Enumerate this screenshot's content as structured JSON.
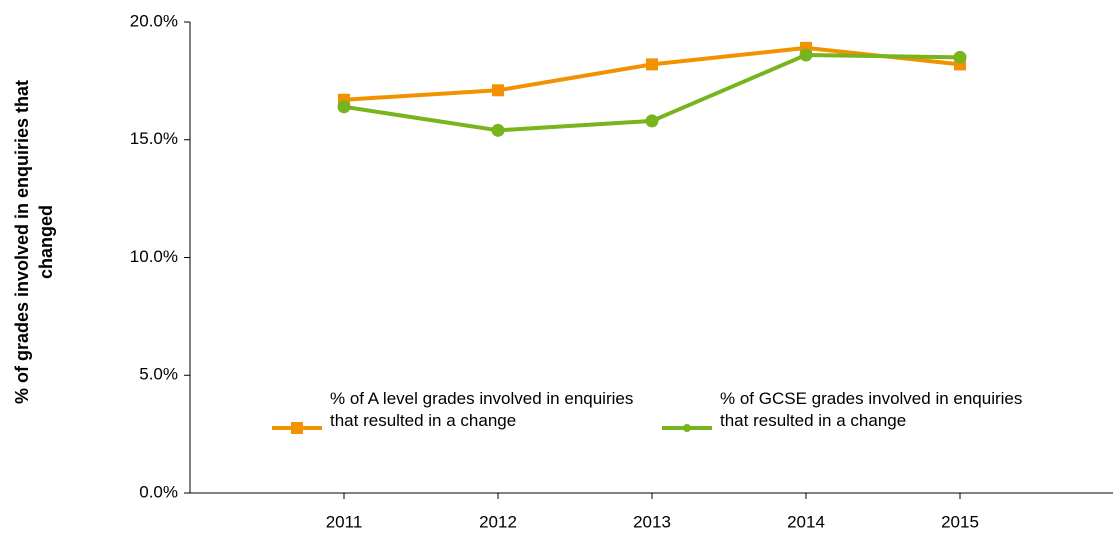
{
  "chart_data": {
    "type": "line",
    "y_label": "% of grades involved in enquiries that changed",
    "categories": [
      "2011",
      "2012",
      "2013",
      "2014",
      "2015"
    ],
    "series": [
      {
        "name": "% of A level grades involved in enquiries that resulted in a change",
        "color": "#f39200",
        "marker": "square",
        "values": [
          16.7,
          17.1,
          18.2,
          18.9,
          18.2
        ]
      },
      {
        "name": "% of GCSE grades involved in enquiries that resulted in a change",
        "color": "#77b41e",
        "marker": "circle",
        "values": [
          16.4,
          15.4,
          15.8,
          18.6,
          18.5
        ]
      }
    ],
    "ylim": [
      0,
      20
    ],
    "yticks": [
      {
        "value": 0,
        "label": "0.0%"
      },
      {
        "value": 5,
        "label": "5.0%"
      },
      {
        "value": 10,
        "label": "10.0%"
      },
      {
        "value": 15,
        "label": "15.0%"
      },
      {
        "value": 20,
        "label": "20.0%"
      }
    ],
    "legend": "bottom-left",
    "grid": false
  }
}
